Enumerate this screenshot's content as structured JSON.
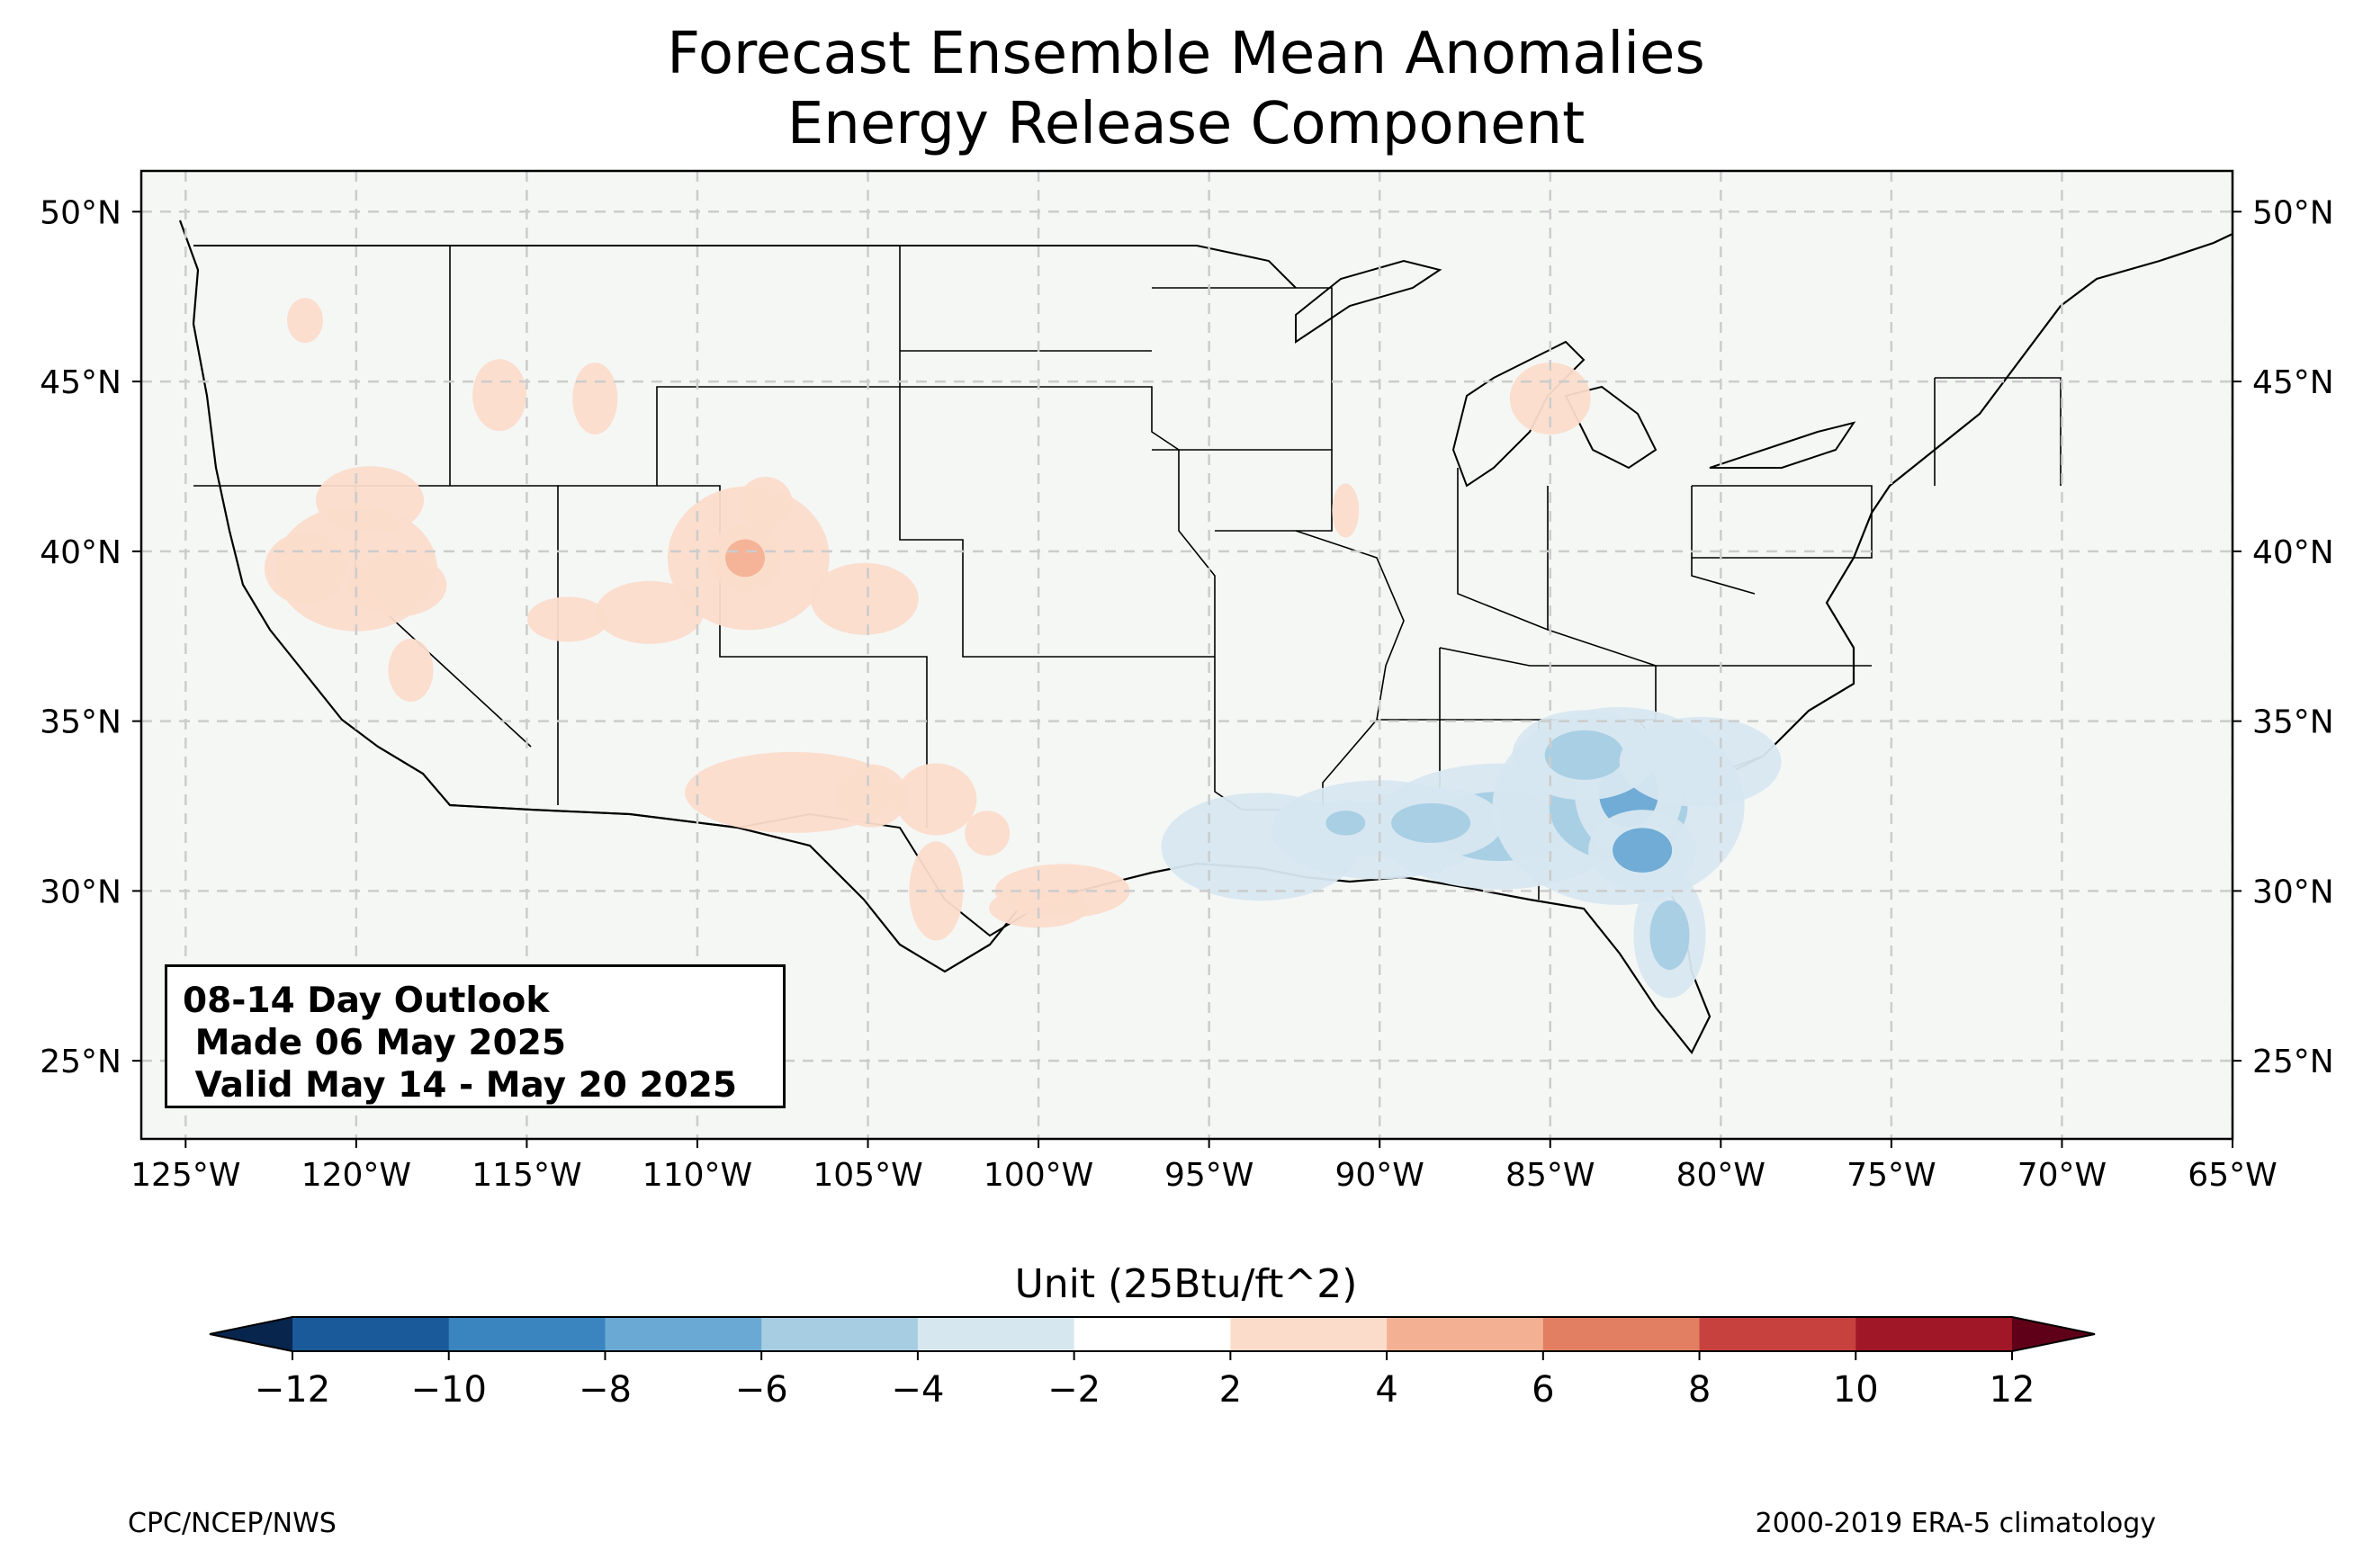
{
  "title_line1": "Forecast Ensemble Mean Anomalies",
  "title_line2": "Energy Release Component",
  "outlook": {
    "line1": "08-14 Day Outlook",
    "line2": " Made 06 May 2025",
    "line3": " Valid May 14 - May 20 2025"
  },
  "latitude_labels": [
    "50°N",
    "45°N",
    "40°N",
    "35°N",
    "30°N",
    "25°N"
  ],
  "latitude_values": [
    50,
    45,
    40,
    35,
    30,
    25
  ],
  "longitude_labels": [
    "125°W",
    "120°W",
    "115°W",
    "110°W",
    "105°W",
    "100°W",
    "95°W",
    "90°W",
    "85°W",
    "80°W",
    "75°W",
    "70°W",
    "65°W"
  ],
  "longitude_values": [
    -125,
    -120,
    -115,
    -110,
    -105,
    -100,
    -95,
    -90,
    -85,
    -80,
    -75,
    -70,
    -65
  ],
  "colorbar": {
    "title": "Unit (25Btu/ft^2)",
    "tick_labels": [
      "−12",
      "−10",
      "−8",
      "−6",
      "−4",
      "−2",
      "2",
      "4",
      "6",
      "8",
      "10",
      "12"
    ],
    "colors": [
      "#1b5a9a",
      "#3a85c0",
      "#6aa9d3",
      "#a7cde3",
      "#d7e7f0",
      "#ffffff",
      "#fbdccb",
      "#f4b093",
      "#e27f62",
      "#c7413f",
      "#a01728"
    ],
    "under_color": "#08254e",
    "over_color": "#5f0018"
  },
  "footer": {
    "credit": "CPC/NCEP/NWS",
    "climatology": "2000-2019 ERA-5 climatology"
  },
  "colors": {
    "land": "#f5f7f5",
    "gridline": "#cccccc"
  }
}
